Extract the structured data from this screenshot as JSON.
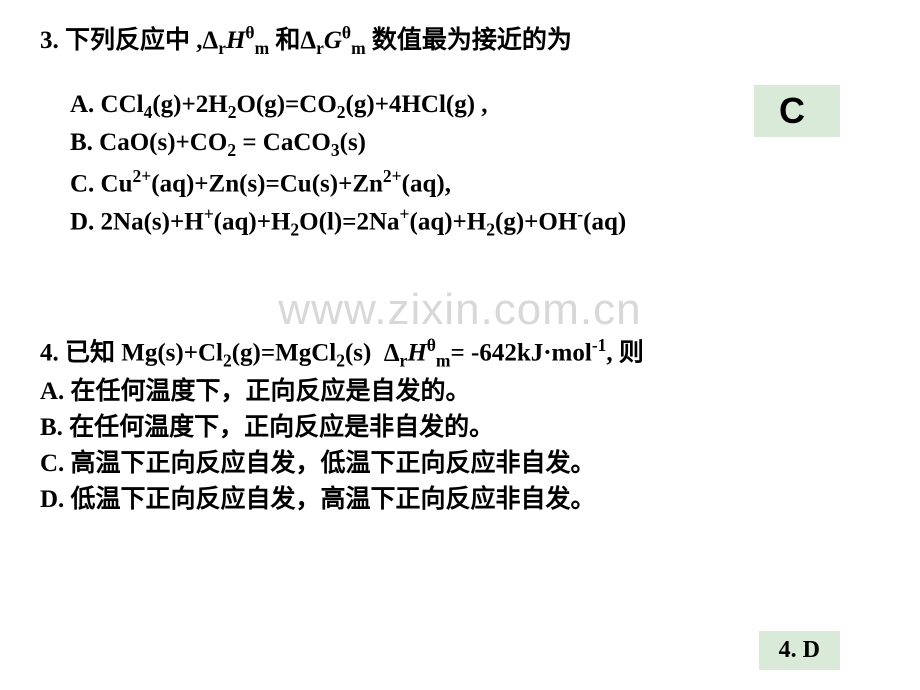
{
  "q3": {
    "header_html": "3. 下列反应中 ,Δ<sub>r</sub><span class='italic'>H</span><sup>θ</sup><sub>m</sub> 和Δ<sub>r</sub><span class='italic'>G</span><sup>θ</sup><sub>m</sub> 数值最为接近的为",
    "opt_a_html": "A. CCl<sub>4</sub>(g)+2H<sub>2</sub>O(g)=CO<sub>2</sub>(g)+4HCl(g) ,",
    "opt_b_html": "B. CaO(s)+CO<sub>2</sub> = CaCO<sub>3</sub>(s)",
    "opt_c_html": "C. Cu<sup>2+</sup>(aq)+Zn(s)=Cu(s)+Zn<sup>2+</sup>(aq),",
    "opt_d_html": "D. 2Na(s)+H<sup>+</sup>(aq)+H<sub>2</sub>O(l)=2Na<sup>+</sup>(aq)+H<sub>2</sub>(g)+OH<sup>-</sup>(aq)",
    "answer": "C"
  },
  "q4": {
    "header_html": "4. 已知 Mg(s)+Cl<sub>2</sub>(g)=MgCl<sub>2</sub>(s)&nbsp; Δ<sub>r</sub><span class='italic'>H</span><sup>θ</sup><sub>m</sub>= -642kJ·mol<sup>-1</sup>, 则",
    "opt_a": "A. 在任何温度下，正向反应是自发的。",
    "opt_b": "B. 在任何温度下，正向反应是非自发的。",
    "opt_c": "C. 高温下正向反应自发，低温下正向反应非自发。",
    "opt_d": "D. 低温下正向反应自发，高温下正向反应非自发。",
    "answer": "4. D"
  },
  "watermark": "www.zixin.com.cn",
  "colors": {
    "answer_bg": "#d9ead9",
    "watermark_color": "#d8d8d8",
    "text": "#000000",
    "bg": "#ffffff"
  }
}
